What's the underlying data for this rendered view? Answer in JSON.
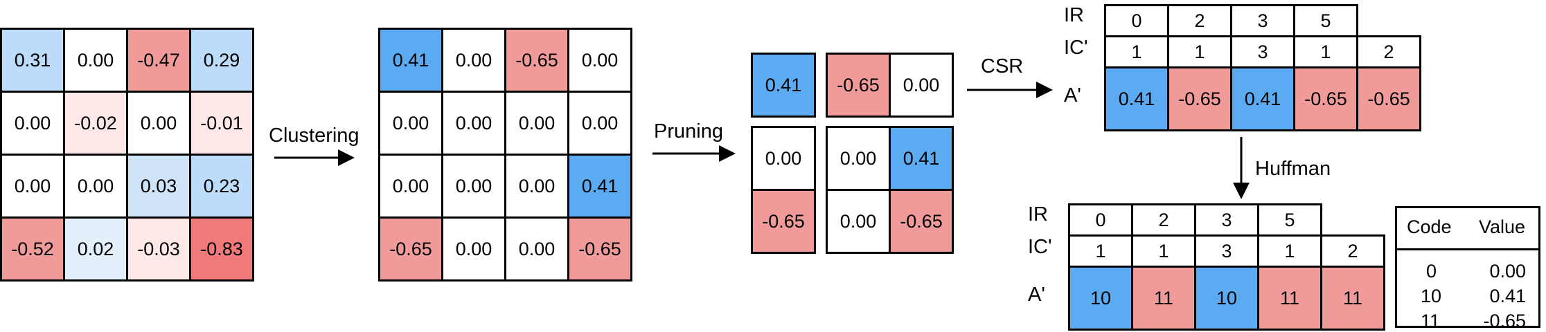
{
  "colors": {
    "white": "#ffffff",
    "blue_strong": "#5aabf2",
    "blue_mid": "#bcdcf9",
    "blue_light": "#cfe4f8",
    "blue_pale": "#e3f0fb",
    "red_strong": "#f07a7a",
    "red_mid": "#f09a9a",
    "red_pale": "#fde7e7"
  },
  "original_matrix": [
    [
      {
        "v": "0.31",
        "c": "blue_mid"
      },
      {
        "v": "0.00",
        "c": "white"
      },
      {
        "v": "-0.47",
        "c": "red_mid"
      },
      {
        "v": "0.29",
        "c": "blue_mid"
      }
    ],
    [
      {
        "v": "0.00",
        "c": "white"
      },
      {
        "v": "-0.02",
        "c": "red_pale"
      },
      {
        "v": "0.00",
        "c": "white"
      },
      {
        "v": "-0.01",
        "c": "red_pale"
      }
    ],
    [
      {
        "v": "0.00",
        "c": "white"
      },
      {
        "v": "0.00",
        "c": "white"
      },
      {
        "v": "0.03",
        "c": "blue_light"
      },
      {
        "v": "0.23",
        "c": "blue_mid"
      }
    ],
    [
      {
        "v": "-0.52",
        "c": "red_mid"
      },
      {
        "v": "0.02",
        "c": "blue_pale"
      },
      {
        "v": "-0.03",
        "c": "red_pale"
      },
      {
        "v": "-0.83",
        "c": "red_strong"
      }
    ]
  ],
  "clustered_matrix": [
    [
      {
        "v": "0.41",
        "c": "blue_strong"
      },
      {
        "v": "0.00",
        "c": "white"
      },
      {
        "v": "-0.65",
        "c": "red_mid"
      },
      {
        "v": "0.00",
        "c": "white"
      }
    ],
    [
      {
        "v": "0.00",
        "c": "white"
      },
      {
        "v": "0.00",
        "c": "white"
      },
      {
        "v": "0.00",
        "c": "white"
      },
      {
        "v": "0.00",
        "c": "white"
      }
    ],
    [
      {
        "v": "0.00",
        "c": "white"
      },
      {
        "v": "0.00",
        "c": "white"
      },
      {
        "v": "0.00",
        "c": "white"
      },
      {
        "v": "0.41",
        "c": "blue_strong"
      }
    ],
    [
      {
        "v": "-0.65",
        "c": "red_mid"
      },
      {
        "v": "0.00",
        "c": "white"
      },
      {
        "v": "0.00",
        "c": "white"
      },
      {
        "v": "-0.65",
        "c": "red_mid"
      }
    ]
  ],
  "pruned_blocks": [
    {
      "name": "pruned-block-top-left",
      "cells": [
        {
          "v": "0.41",
          "c": "blue_strong"
        }
      ]
    },
    {
      "name": "pruned-block-top-right",
      "cells": [
        {
          "v": "-0.65",
          "c": "red_mid"
        },
        {
          "v": "0.00",
          "c": "white"
        }
      ]
    },
    {
      "name": "pruned-block-bottom-left",
      "cells": [
        {
          "v": "0.00",
          "c": "white"
        },
        {
          "v": "-0.65",
          "c": "red_mid"
        }
      ]
    },
    {
      "name": "pruned-block-bottom-right",
      "cells": [
        {
          "v": "0.00",
          "c": "white"
        },
        {
          "v": "0.41",
          "c": "blue_strong"
        },
        {
          "v": "0.00",
          "c": "white"
        },
        {
          "v": "-0.65",
          "c": "red_mid"
        }
      ]
    }
  ],
  "arrows": {
    "clustering": "Clustering",
    "pruning": "Pruning",
    "csr": "CSR",
    "huffman": "Huffman"
  },
  "csr": {
    "ir_label": "IR",
    "ic_label": "IC'",
    "a_label": "A'",
    "ir": [
      "0",
      "2",
      "3",
      "5"
    ],
    "ic": [
      "1",
      "1",
      "3",
      "1",
      "2"
    ],
    "a": [
      {
        "v": "0.41",
        "c": "blue_strong"
      },
      {
        "v": "-0.65",
        "c": "red_mid"
      },
      {
        "v": "0.41",
        "c": "blue_strong"
      },
      {
        "v": "-0.65",
        "c": "red_mid"
      },
      {
        "v": "-0.65",
        "c": "red_mid"
      }
    ]
  },
  "huffman": {
    "ir_label": "IR",
    "ic_label": "IC'",
    "a_label": "A'",
    "ir": [
      "0",
      "2",
      "3",
      "5"
    ],
    "ic": [
      "1",
      "1",
      "3",
      "1",
      "2"
    ],
    "a": [
      {
        "v": "10",
        "c": "blue_strong"
      },
      {
        "v": "11",
        "c": "red_mid"
      },
      {
        "v": "10",
        "c": "blue_strong"
      },
      {
        "v": "11",
        "c": "red_mid"
      },
      {
        "v": "11",
        "c": "red_mid"
      }
    ]
  },
  "code_table": {
    "code_header": "Code",
    "value_header": "Value",
    "rows": [
      {
        "code": "0",
        "value": "0.00"
      },
      {
        "code": "10",
        "value": "0.41"
      },
      {
        "code": "11",
        "value": "-0.65"
      }
    ]
  }
}
